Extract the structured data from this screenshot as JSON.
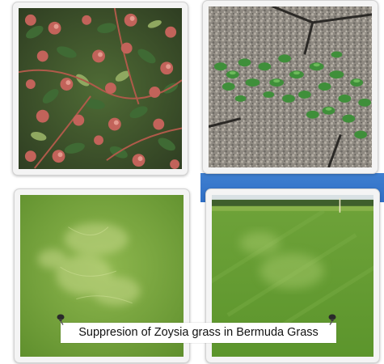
{
  "caption": {
    "text": "Suppresion of Zoysia grass in Bermuda Grass"
  },
  "photos": [
    {
      "subject": "reddish-stemmed weed with small green leaves and pink flower clusters"
    },
    {
      "subject": "low green weed spreading over gravel and concrete"
    },
    {
      "subject": "pale zoysia patches within bermuda grass turf"
    },
    {
      "subject": "golf green with faint lighter zoysia patches"
    }
  ],
  "colors": {
    "frame": "#f4f4f4",
    "accent_blue": "#3a78cc",
    "turf": "#6ea335"
  },
  "icons": [
    "pushpin-icon",
    "pushpin-icon"
  ]
}
